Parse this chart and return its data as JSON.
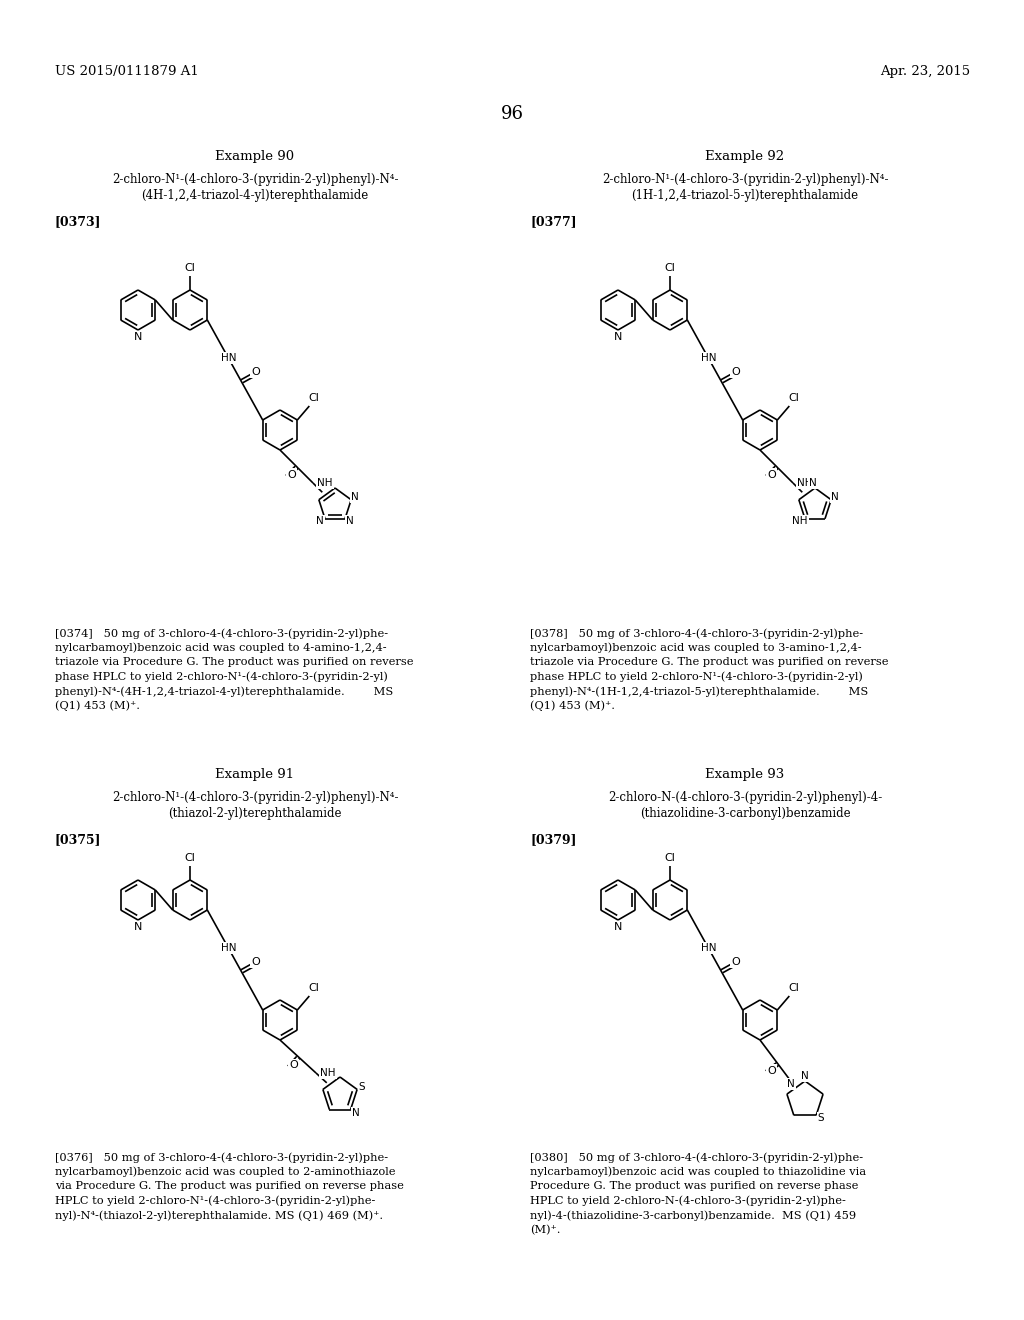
{
  "title_left": "US 2015/0111879 A1",
  "title_right": "Apr. 23, 2015",
  "page_number": "96",
  "ex90_title": "Example 90",
  "ex90_line1": "2-chloro-N¹-(4-chloro-3-(pyridin-2-yl)phenyl)-N⁴-",
  "ex90_line2": "(4H-1,2,4-triazol-4-yl)terephthalamide",
  "ex90_ref": "[0373]",
  "ex92_title": "Example 92",
  "ex92_line1": "2-chloro-N¹-(4-chloro-3-(pyridin-2-yl)phenyl)-N⁴-",
  "ex92_line2": "(1H-1,2,4-triazol-5-yl)terephthalamide",
  "ex92_ref": "[0377]",
  "ex91_title": "Example 91",
  "ex91_line1": "2-chloro-N¹-(4-chloro-3-(pyridin-2-yl)phenyl)-N⁴-",
  "ex91_line2": "(thiazol-2-yl)terephthalamide",
  "ex91_ref": "[0375]",
  "ex93_title": "Example 93",
  "ex93_line1": "2-chloro-N-(4-chloro-3-(pyridin-2-yl)phenyl)-4-",
  "ex93_line2": "(thiazolidine-3-carbonyl)benzamide",
  "ex93_ref": "[0379]",
  "p374_lines": [
    "[0374]   50 mg of 3-chloro-4-(4-chloro-3-(pyridin-2-yl)phe-",
    "nylcarbamoyl)benzoic acid was coupled to 4-amino-1,2,4-",
    "triazole via Procedure G. The product was purified on reverse",
    "phase HPLC to yield 2-chloro-N¹-(4-chloro-3-(pyridin-2-yl)",
    "phenyl)-N⁴-(4H-1,2,4-triazol-4-yl)terephthalamide.        MS",
    "(Q1) 453 (M)⁺."
  ],
  "p378_lines": [
    "[0378]   50 mg of 3-chloro-4-(4-chloro-3-(pyridin-2-yl)phe-",
    "nylcarbamoyl)benzoic acid was coupled to 3-amino-1,2,4-",
    "triazole via Procedure G. The product was purified on reverse",
    "phase HPLC to yield 2-chloro-N¹-(4-chloro-3-(pyridin-2-yl)",
    "phenyl)-N⁴-(1H-1,2,4-triazol-5-yl)terephthalamide.        MS",
    "(Q1) 453 (M)⁺."
  ],
  "p376_lines": [
    "[0376]   50 mg of 3-chloro-4-(4-chloro-3-(pyridin-2-yl)phe-",
    "nylcarbamoyl)benzoic acid was coupled to 2-aminothiazole",
    "via Procedure G. The product was purified on reverse phase",
    "HPLC to yield 2-chloro-N¹-(4-chloro-3-(pyridin-2-yl)phe-",
    "nyl)-N⁴-(thiazol-2-yl)terephthalamide. MS (Q1) 469 (M)⁺."
  ],
  "p380_lines": [
    "[0380]   50 mg of 3-chloro-4-(4-chloro-3-(pyridin-2-yl)phe-",
    "nylcarbamoyl)benzoic acid was coupled to thiazolidine via",
    "Procedure G. The product was purified on reverse phase",
    "HPLC to yield 2-chloro-N-(4-chloro-3-(pyridin-2-yl)phe-",
    "nyl)-4-(thiazolidine-3-carbonyl)benzamide.  MS (Q1) 459",
    "(M)⁺."
  ]
}
